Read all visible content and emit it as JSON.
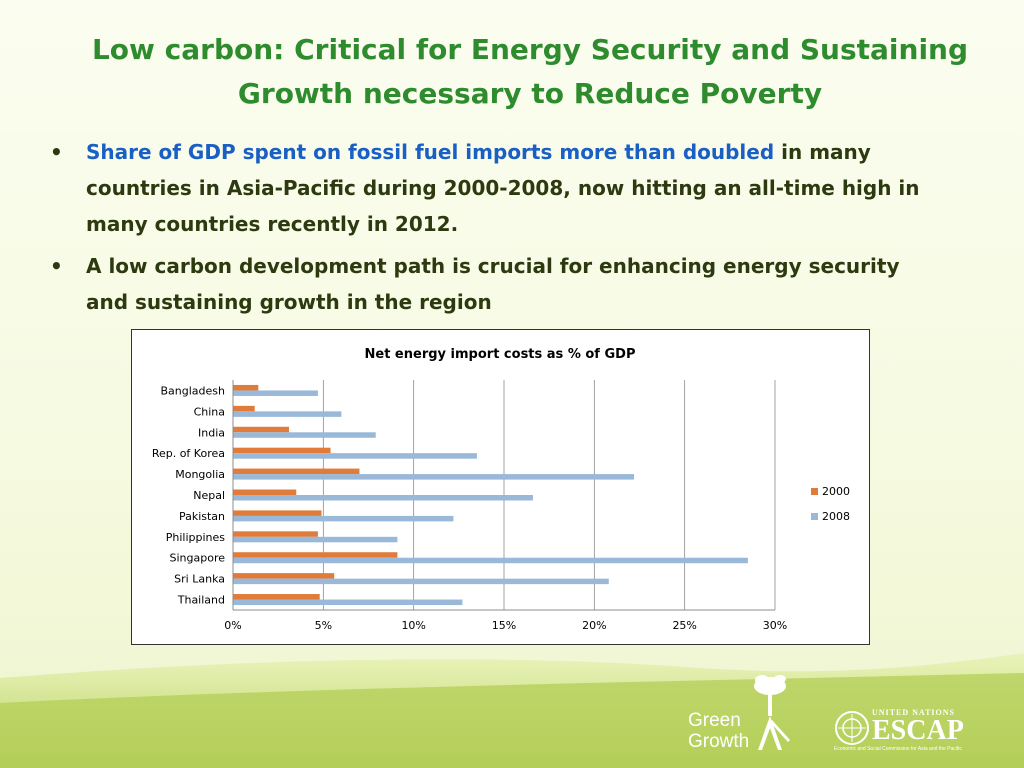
{
  "slide": {
    "title_line1": "Low carbon: Critical for Energy Security and  Sustaining",
    "title_line2": "Growth necessary to Reduce Poverty",
    "bullet_char": "•",
    "bullet1_highlight": "Share of GDP spent on fossil fuel imports more than doubled",
    "bullet1_rest": " in many countries in Asia-Pacific during 2000-2008, now hitting an all-time high in many countries recently in 2012.",
    "bullet2": "A low carbon development path is crucial for enhancing energy security and sustaining growth in the region",
    "colors": {
      "title": "#2e8b2e",
      "highlight": "#1a5fc4",
      "text": "#2d3a10"
    }
  },
  "logos": {
    "green_growth_line1": "Green",
    "green_growth_line2": "Growth",
    "escap_top": "UNITED NATIONS",
    "escap_main": "ESCAP",
    "escap_sub": "Economic and Social Commission for Asia and the Pacific"
  },
  "chart_data": {
    "type": "bar",
    "orientation": "horizontal",
    "title": "Net energy import costs as % of GDP",
    "categories": [
      "Bangladesh",
      "China",
      "India",
      "Rep. of Korea",
      "Mongolia",
      "Nepal",
      "Pakistan",
      "Philippines",
      "Singapore",
      "Sri Lanka",
      "Thailand"
    ],
    "series": [
      {
        "name": "2000",
        "color": "#e07b39",
        "values": [
          1.4,
          1.2,
          3.1,
          5.4,
          7.0,
          3.5,
          4.9,
          4.7,
          9.1,
          5.6,
          4.8
        ]
      },
      {
        "name": "2008",
        "color": "#9ab8d8",
        "values": [
          4.7,
          6.0,
          7.9,
          13.5,
          22.2,
          16.6,
          12.2,
          9.1,
          28.5,
          20.8,
          12.7
        ]
      }
    ],
    "xlim": [
      0,
      30
    ],
    "xticks": [
      0,
      5,
      10,
      15,
      20,
      25,
      30
    ],
    "xtick_labels": [
      "0%",
      "5%",
      "10%",
      "15%",
      "20%",
      "25%",
      "30%"
    ],
    "grid": "vertical",
    "legend": "right"
  }
}
